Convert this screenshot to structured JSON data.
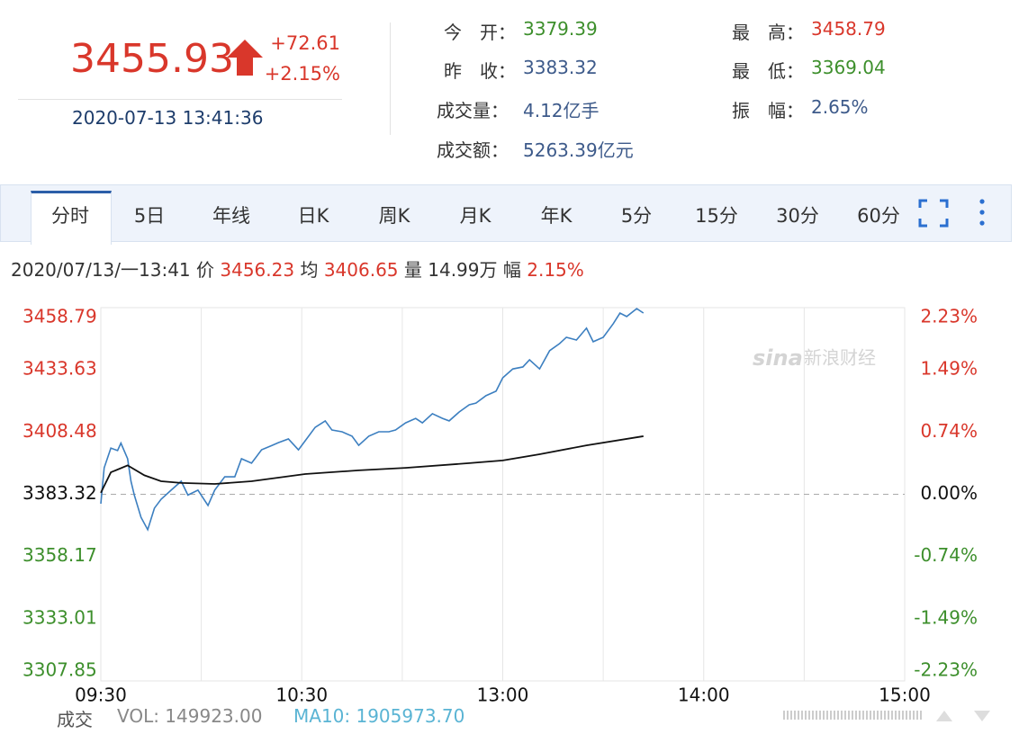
{
  "quote": {
    "price": "3455.93",
    "change": "+72.61",
    "percent": "+2.15%",
    "datetime": "2020-07-13 13:41:36",
    "fields": [
      {
        "label": "今　开：",
        "value": "3379.39"
      },
      {
        "label": "昨　收：",
        "value": "3383.32"
      },
      {
        "label": "成交量：",
        "value": "4.12亿手"
      },
      {
        "label": "成交额：",
        "value": "5263.39亿元"
      },
      {
        "label": "最　高：",
        "value": "3458.79"
      },
      {
        "label": "最　低：",
        "value": "3369.04"
      },
      {
        "label": "振　幅：",
        "value": "2.65%"
      }
    ]
  },
  "tabs": [
    "分时",
    "5日",
    "年线",
    "日K",
    "周K",
    "月K",
    "年K",
    "5分",
    "15分",
    "30分",
    "60分"
  ],
  "crosshair_info": {
    "time": "2020/07/13/一13:41",
    "price_label": "价",
    "price": "3456.23",
    "avg_label": "均",
    "avg": "3406.65",
    "volume_label": "量",
    "volume": "14.99万",
    "range_label": "幅",
    "range": "2.15%"
  },
  "volume": {
    "title": "成交",
    "vol": "VOL: 149923.00",
    "ma10": "MA10: 1905973.70"
  },
  "watermark": {
    "logo": "sina",
    "text": "新浪财经"
  },
  "chart_data": {
    "type": "line",
    "xlim": [
      0,
      240
    ],
    "xticks": [
      {
        "value": 0,
        "label": "09:30"
      },
      {
        "value": 60,
        "label": "10:30"
      },
      {
        "value": 120,
        "label": "13:00"
      },
      {
        "value": 180,
        "label": "14:00"
      },
      {
        "value": 240,
        "label": "15:00"
      }
    ],
    "ylim": [
      3307.85,
      3458.79
    ],
    "yticks": [
      3458.79,
      3433.63,
      3408.48,
      3383.32,
      3358.17,
      3333.01,
      3307.85
    ],
    "y2lim": [
      -2.23,
      2.23
    ],
    "y2ticks": [
      {
        "value": 2.23,
        "label": "2.23%"
      },
      {
        "value": 1.49,
        "label": "1.49%"
      },
      {
        "value": 0.74,
        "label": "0.74%"
      },
      {
        "value": 0,
        "label": "0.00%"
      },
      {
        "value": -0.74,
        "label": "-0.74%"
      },
      {
        "value": -1.49,
        "label": "-1.49%"
      },
      {
        "value": -2.23,
        "label": "-2.23%"
      }
    ],
    "grid": true,
    "series": [
      {
        "color": "#3c7fc0",
        "x": [
          0,
          1,
          3,
          5,
          6,
          8,
          9,
          10,
          12,
          14,
          16,
          18,
          21,
          24,
          26,
          29,
          32,
          34,
          37,
          40,
          42,
          45,
          48,
          51,
          53,
          56,
          59,
          61,
          64,
          67,
          69,
          72,
          75,
          77,
          80,
          83,
          86,
          88,
          91,
          94,
          96,
          99,
          102,
          104,
          107,
          110,
          112,
          115,
          118,
          120,
          123,
          126,
          128,
          131,
          134,
          137,
          139,
          142,
          145,
          147,
          150,
          153,
          155,
          157,
          160,
          162
        ],
        "values": [
          3379.5,
          3394,
          3402,
          3401,
          3404,
          3397.7,
          3388.6,
          3383,
          3374,
          3369,
          3377.7,
          3381.3,
          3385,
          3388.6,
          3383,
          3385,
          3378.8,
          3385,
          3390.4,
          3390.4,
          3397.7,
          3395.9,
          3401.3,
          3403,
          3404.2,
          3405.7,
          3401.3,
          3404.9,
          3410.4,
          3413,
          3409.3,
          3408.6,
          3406.8,
          3403.1,
          3406.8,
          3408.6,
          3408.6,
          3409.3,
          3412.2,
          3414,
          3412.2,
          3415.9,
          3414,
          3413,
          3416.6,
          3419.5,
          3420.2,
          3423.2,
          3425,
          3430.4,
          3434,
          3434.8,
          3437.7,
          3434,
          3441.4,
          3444.3,
          3446.8,
          3445.7,
          3450.5,
          3445,
          3446.8,
          3452.3,
          3456.6,
          3455.2,
          3458.4,
          3456.6
        ]
      },
      {
        "color": "#111111",
        "x": [
          0,
          3,
          8,
          13,
          18,
          24,
          34,
          45,
          61,
          77,
          91,
          110,
          120,
          131,
          145,
          162
        ],
        "values": [
          3383.9,
          3392.2,
          3395,
          3391,
          3388.6,
          3387.9,
          3387.5,
          3388.6,
          3391.5,
          3393,
          3394,
          3395.9,
          3397,
          3399.5,
          3403.1,
          3406.8
        ]
      }
    ]
  }
}
